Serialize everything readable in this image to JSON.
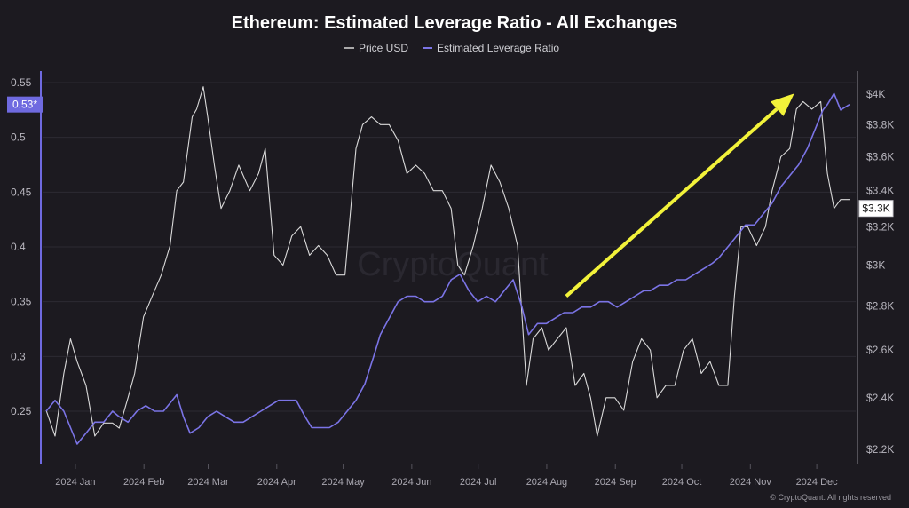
{
  "chart_data": {
    "type": "line",
    "title": "Ethereum: Estimated Leverage Ratio - All Exchanges",
    "legend": [
      {
        "label": "Price USD",
        "color": "#d9d9d9"
      },
      {
        "label": "Estimated Leverage Ratio",
        "color": "#7b74e6"
      }
    ],
    "legend_position": "top-center",
    "watermark": "CryptoQuant",
    "copyright": "© CryptoQuant. All rights reserved",
    "grid": true,
    "x_tick_labels": [
      "2024 Jan",
      "2024 Feb",
      "2024 Mar",
      "2024 Apr",
      "2024 May",
      "2024 Jun",
      "2024 Jul",
      "2024 Aug",
      "2024 Sep",
      "2024 Oct",
      "2024 Nov",
      "2024 Dec"
    ],
    "left_axis": {
      "scale": "linear",
      "ylim": [
        0.2,
        0.55
      ],
      "ticks": [
        {
          "v": 0.25,
          "label": "0.25"
        },
        {
          "v": 0.3,
          "label": "0.3"
        },
        {
          "v": 0.35,
          "label": "0.35"
        },
        {
          "v": 0.4,
          "label": "0.4"
        },
        {
          "v": 0.45,
          "label": "0.45"
        },
        {
          "v": 0.5,
          "label": "0.5"
        },
        {
          "v": 0.55,
          "label": "0.55"
        }
      ],
      "badge": {
        "v": 0.53,
        "label": "0.53*",
        "color": "#6f6ae0"
      }
    },
    "right_axis": {
      "scale": "log",
      "ylim": [
        2200,
        4100
      ],
      "ticks": [
        {
          "v": 2200,
          "label": "$2.2K"
        },
        {
          "v": 2400,
          "label": "$2.4K"
        },
        {
          "v": 2600,
          "label": "$2.6K"
        },
        {
          "v": 2800,
          "label": "$2.8K"
        },
        {
          "v": 3000,
          "label": "$3K"
        },
        {
          "v": 3200,
          "label": "$3.2K"
        },
        {
          "v": 3400,
          "label": "$3.4K"
        },
        {
          "v": 3600,
          "label": "$3.6K"
        },
        {
          "v": 3800,
          "label": "$3.8K"
        },
        {
          "v": 4000,
          "label": "$4K"
        }
      ],
      "badge": {
        "v": 3300,
        "label": "$3.3K"
      }
    },
    "annotation": {
      "type": "arrow",
      "color": "#f2f23a",
      "from": {
        "x": "2024-08-23",
        "y": 0.355
      },
      "to": {
        "x": "2024-12-04",
        "y": 0.54
      }
    },
    "series": [
      {
        "name": "Price USD",
        "axis": "right",
        "color": "#d9d9d9",
        "points": [
          [
            "2024-01-01",
            2350
          ],
          [
            "2024-01-05",
            2250
          ],
          [
            "2024-01-09",
            2500
          ],
          [
            "2024-01-12",
            2650
          ],
          [
            "2024-01-15",
            2550
          ],
          [
            "2024-01-19",
            2450
          ],
          [
            "2024-01-23",
            2250
          ],
          [
            "2024-01-27",
            2300
          ],
          [
            "2024-01-31",
            2300
          ],
          [
            "2024-02-03",
            2280
          ],
          [
            "2024-02-07",
            2400
          ],
          [
            "2024-02-10",
            2500
          ],
          [
            "2024-02-14",
            2750
          ],
          [
            "2024-02-18",
            2850
          ],
          [
            "2024-02-22",
            2950
          ],
          [
            "2024-02-26",
            3100
          ],
          [
            "2024-02-29",
            3400
          ],
          [
            "2024-03-03",
            3450
          ],
          [
            "2024-03-07",
            3850
          ],
          [
            "2024-03-09",
            3900
          ],
          [
            "2024-03-12",
            4050
          ],
          [
            "2024-03-14",
            3850
          ],
          [
            "2024-03-17",
            3550
          ],
          [
            "2024-03-20",
            3300
          ],
          [
            "2024-03-24",
            3400
          ],
          [
            "2024-03-28",
            3550
          ],
          [
            "2024-04-02",
            3400
          ],
          [
            "2024-04-06",
            3500
          ],
          [
            "2024-04-09",
            3650
          ],
          [
            "2024-04-13",
            3050
          ],
          [
            "2024-04-17",
            3000
          ],
          [
            "2024-04-21",
            3150
          ],
          [
            "2024-04-25",
            3200
          ],
          [
            "2024-04-29",
            3050
          ],
          [
            "2024-05-03",
            3100
          ],
          [
            "2024-05-07",
            3050
          ],
          [
            "2024-05-11",
            2950
          ],
          [
            "2024-05-15",
            2950
          ],
          [
            "2024-05-20",
            3650
          ],
          [
            "2024-05-23",
            3800
          ],
          [
            "2024-05-27",
            3850
          ],
          [
            "2024-05-31",
            3800
          ],
          [
            "2024-06-04",
            3800
          ],
          [
            "2024-06-08",
            3700
          ],
          [
            "2024-06-12",
            3500
          ],
          [
            "2024-06-16",
            3550
          ],
          [
            "2024-06-20",
            3500
          ],
          [
            "2024-06-24",
            3400
          ],
          [
            "2024-06-28",
            3400
          ],
          [
            "2024-07-02",
            3300
          ],
          [
            "2024-07-05",
            3000
          ],
          [
            "2024-07-08",
            2950
          ],
          [
            "2024-07-12",
            3100
          ],
          [
            "2024-07-16",
            3300
          ],
          [
            "2024-07-20",
            3550
          ],
          [
            "2024-07-24",
            3450
          ],
          [
            "2024-07-28",
            3300
          ],
          [
            "2024-08-01",
            3100
          ],
          [
            "2024-08-05",
            2450
          ],
          [
            "2024-08-08",
            2650
          ],
          [
            "2024-08-12",
            2700
          ],
          [
            "2024-08-15",
            2600
          ],
          [
            "2024-08-19",
            2650
          ],
          [
            "2024-08-23",
            2700
          ],
          [
            "2024-08-27",
            2450
          ],
          [
            "2024-08-31",
            2500
          ],
          [
            "2024-09-03",
            2400
          ],
          [
            "2024-09-06",
            2250
          ],
          [
            "2024-09-10",
            2400
          ],
          [
            "2024-09-14",
            2400
          ],
          [
            "2024-09-18",
            2350
          ],
          [
            "2024-09-22",
            2550
          ],
          [
            "2024-09-26",
            2650
          ],
          [
            "2024-09-30",
            2600
          ],
          [
            "2024-10-03",
            2400
          ],
          [
            "2024-10-07",
            2450
          ],
          [
            "2024-10-11",
            2450
          ],
          [
            "2024-10-15",
            2600
          ],
          [
            "2024-10-19",
            2650
          ],
          [
            "2024-10-23",
            2500
          ],
          [
            "2024-10-27",
            2550
          ],
          [
            "2024-10-31",
            2450
          ],
          [
            "2024-11-04",
            2450
          ],
          [
            "2024-11-07",
            2850
          ],
          [
            "2024-11-10",
            3200
          ],
          [
            "2024-11-13",
            3200
          ],
          [
            "2024-11-17",
            3100
          ],
          [
            "2024-11-21",
            3200
          ],
          [
            "2024-11-24",
            3400
          ],
          [
            "2024-11-28",
            3600
          ],
          [
            "2024-12-02",
            3650
          ],
          [
            "2024-12-05",
            3900
          ],
          [
            "2024-12-08",
            3950
          ],
          [
            "2024-12-12",
            3900
          ],
          [
            "2024-12-16",
            3950
          ],
          [
            "2024-12-19",
            3500
          ],
          [
            "2024-12-22",
            3300
          ],
          [
            "2024-12-25",
            3350
          ],
          [
            "2024-12-29",
            3350
          ]
        ]
      },
      {
        "name": "Estimated Leverage Ratio",
        "axis": "left",
        "color": "#7b74e6",
        "points": [
          [
            "2024-01-01",
            0.25
          ],
          [
            "2024-01-05",
            0.26
          ],
          [
            "2024-01-09",
            0.25
          ],
          [
            "2024-01-12",
            0.235
          ],
          [
            "2024-01-15",
            0.22
          ],
          [
            "2024-01-19",
            0.23
          ],
          [
            "2024-01-23",
            0.24
          ],
          [
            "2024-01-27",
            0.24
          ],
          [
            "2024-01-31",
            0.25
          ],
          [
            "2024-02-03",
            0.245
          ],
          [
            "2024-02-07",
            0.24
          ],
          [
            "2024-02-11",
            0.25
          ],
          [
            "2024-02-15",
            0.255
          ],
          [
            "2024-02-19",
            0.25
          ],
          [
            "2024-02-23",
            0.25
          ],
          [
            "2024-02-27",
            0.26
          ],
          [
            "2024-02-29",
            0.265
          ],
          [
            "2024-03-03",
            0.245
          ],
          [
            "2024-03-06",
            0.23
          ],
          [
            "2024-03-10",
            0.235
          ],
          [
            "2024-03-14",
            0.245
          ],
          [
            "2024-03-18",
            0.25
          ],
          [
            "2024-03-22",
            0.245
          ],
          [
            "2024-03-26",
            0.24
          ],
          [
            "2024-03-30",
            0.24
          ],
          [
            "2024-04-03",
            0.245
          ],
          [
            "2024-04-07",
            0.25
          ],
          [
            "2024-04-11",
            0.255
          ],
          [
            "2024-04-15",
            0.26
          ],
          [
            "2024-04-19",
            0.26
          ],
          [
            "2024-04-23",
            0.26
          ],
          [
            "2024-04-27",
            0.245
          ],
          [
            "2024-04-30",
            0.235
          ],
          [
            "2024-05-04",
            0.235
          ],
          [
            "2024-05-08",
            0.235
          ],
          [
            "2024-05-12",
            0.24
          ],
          [
            "2024-05-16",
            0.25
          ],
          [
            "2024-05-20",
            0.26
          ],
          [
            "2024-05-24",
            0.275
          ],
          [
            "2024-05-28",
            0.3
          ],
          [
            "2024-05-31",
            0.32
          ],
          [
            "2024-06-04",
            0.335
          ],
          [
            "2024-06-08",
            0.35
          ],
          [
            "2024-06-12",
            0.355
          ],
          [
            "2024-06-16",
            0.355
          ],
          [
            "2024-06-20",
            0.35
          ],
          [
            "2024-06-24",
            0.35
          ],
          [
            "2024-06-28",
            0.355
          ],
          [
            "2024-07-02",
            0.37
          ],
          [
            "2024-07-06",
            0.375
          ],
          [
            "2024-07-10",
            0.36
          ],
          [
            "2024-07-14",
            0.35
          ],
          [
            "2024-07-18",
            0.355
          ],
          [
            "2024-07-22",
            0.35
          ],
          [
            "2024-07-26",
            0.36
          ],
          [
            "2024-07-30",
            0.37
          ],
          [
            "2024-08-03",
            0.345
          ],
          [
            "2024-08-06",
            0.32
          ],
          [
            "2024-08-10",
            0.33
          ],
          [
            "2024-08-14",
            0.33
          ],
          [
            "2024-08-18",
            0.335
          ],
          [
            "2024-08-22",
            0.34
          ],
          [
            "2024-08-26",
            0.34
          ],
          [
            "2024-08-30",
            0.345
          ],
          [
            "2024-09-03",
            0.345
          ],
          [
            "2024-09-07",
            0.35
          ],
          [
            "2024-09-11",
            0.35
          ],
          [
            "2024-09-15",
            0.345
          ],
          [
            "2024-09-19",
            0.35
          ],
          [
            "2024-09-23",
            0.355
          ],
          [
            "2024-09-27",
            0.36
          ],
          [
            "2024-09-30",
            0.36
          ],
          [
            "2024-10-04",
            0.365
          ],
          [
            "2024-10-08",
            0.365
          ],
          [
            "2024-10-12",
            0.37
          ],
          [
            "2024-10-16",
            0.37
          ],
          [
            "2024-10-20",
            0.375
          ],
          [
            "2024-10-24",
            0.38
          ],
          [
            "2024-10-28",
            0.385
          ],
          [
            "2024-10-31",
            0.39
          ],
          [
            "2024-11-04",
            0.4
          ],
          [
            "2024-11-08",
            0.41
          ],
          [
            "2024-11-12",
            0.42
          ],
          [
            "2024-11-16",
            0.42
          ],
          [
            "2024-11-20",
            0.43
          ],
          [
            "2024-11-24",
            0.44
          ],
          [
            "2024-11-28",
            0.455
          ],
          [
            "2024-12-02",
            0.465
          ],
          [
            "2024-12-06",
            0.475
          ],
          [
            "2024-12-10",
            0.49
          ],
          [
            "2024-12-14",
            0.51
          ],
          [
            "2024-12-17",
            0.525
          ],
          [
            "2024-12-19",
            0.53
          ],
          [
            "2024-12-22",
            0.54
          ],
          [
            "2024-12-25",
            0.525
          ],
          [
            "2024-12-29",
            0.53
          ]
        ]
      }
    ]
  }
}
